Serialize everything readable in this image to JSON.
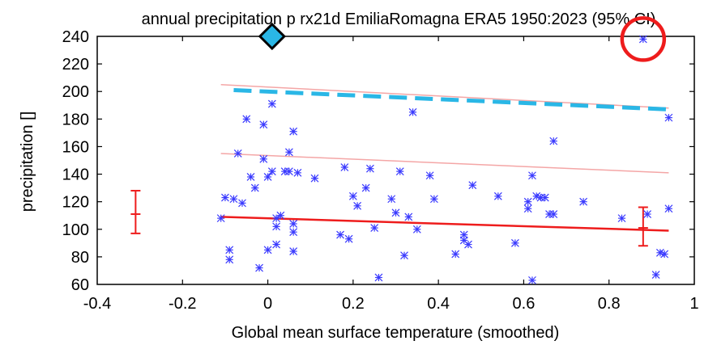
{
  "chart_data": {
    "type": "scatter",
    "title": "annual precipitation p rx21d EmiliaRomagna ERA5 1950:2023 (95% CI)",
    "xlabel": "Global mean surface temperature (smoothed)",
    "ylabel": "precipitation []",
    "xlim": [
      -0.4,
      1.0
    ],
    "ylim": [
      60,
      240
    ],
    "xticks": [
      "-0.4",
      "-0.2",
      "0",
      "0.2",
      "0.4",
      "0.6",
      "0.8",
      "1"
    ],
    "yticks": [
      "60",
      "80",
      "100",
      "120",
      "140",
      "160",
      "180",
      "200",
      "220",
      "240"
    ],
    "grid": false,
    "points": [
      {
        "x": -0.11,
        "y": 108
      },
      {
        "x": -0.1,
        "y": 123
      },
      {
        "x": -0.09,
        "y": 85
      },
      {
        "x": -0.09,
        "y": 78
      },
      {
        "x": -0.08,
        "y": 122
      },
      {
        "x": -0.07,
        "y": 155
      },
      {
        "x": -0.06,
        "y": 119
      },
      {
        "x": -0.05,
        "y": 180
      },
      {
        "x": -0.04,
        "y": 138
      },
      {
        "x": -0.03,
        "y": 130
      },
      {
        "x": -0.02,
        "y": 72
      },
      {
        "x": -0.01,
        "y": 176
      },
      {
        "x": -0.01,
        "y": 151
      },
      {
        "x": 0.0,
        "y": 85
      },
      {
        "x": 0.0,
        "y": 138
      },
      {
        "x": 0.01,
        "y": 191
      },
      {
        "x": 0.01,
        "y": 142
      },
      {
        "x": 0.02,
        "y": 102
      },
      {
        "x": 0.02,
        "y": 108
      },
      {
        "x": 0.02,
        "y": 89
      },
      {
        "x": 0.03,
        "y": 110
      },
      {
        "x": 0.04,
        "y": 142
      },
      {
        "x": 0.05,
        "y": 156
      },
      {
        "x": 0.05,
        "y": 142
      },
      {
        "x": 0.06,
        "y": 171
      },
      {
        "x": 0.06,
        "y": 84
      },
      {
        "x": 0.06,
        "y": 98
      },
      {
        "x": 0.06,
        "y": 104
      },
      {
        "x": 0.07,
        "y": 141
      },
      {
        "x": 0.11,
        "y": 137
      },
      {
        "x": 0.17,
        "y": 96
      },
      {
        "x": 0.18,
        "y": 145
      },
      {
        "x": 0.19,
        "y": 93
      },
      {
        "x": 0.2,
        "y": 124
      },
      {
        "x": 0.21,
        "y": 117
      },
      {
        "x": 0.23,
        "y": 130
      },
      {
        "x": 0.24,
        "y": 144
      },
      {
        "x": 0.25,
        "y": 101
      },
      {
        "x": 0.26,
        "y": 65
      },
      {
        "x": 0.29,
        "y": 122
      },
      {
        "x": 0.3,
        "y": 112
      },
      {
        "x": 0.31,
        "y": 142
      },
      {
        "x": 0.32,
        "y": 81
      },
      {
        "x": 0.33,
        "y": 109
      },
      {
        "x": 0.34,
        "y": 185
      },
      {
        "x": 0.35,
        "y": 100
      },
      {
        "x": 0.38,
        "y": 139
      },
      {
        "x": 0.39,
        "y": 122
      },
      {
        "x": 0.44,
        "y": 82
      },
      {
        "x": 0.46,
        "y": 96
      },
      {
        "x": 0.46,
        "y": 92
      },
      {
        "x": 0.47,
        "y": 89
      },
      {
        "x": 0.48,
        "y": 132
      },
      {
        "x": 0.54,
        "y": 124
      },
      {
        "x": 0.58,
        "y": 90
      },
      {
        "x": 0.61,
        "y": 115
      },
      {
        "x": 0.61,
        "y": 120
      },
      {
        "x": 0.62,
        "y": 139
      },
      {
        "x": 0.62,
        "y": 63
      },
      {
        "x": 0.63,
        "y": 124
      },
      {
        "x": 0.64,
        "y": 123
      },
      {
        "x": 0.65,
        "y": 123
      },
      {
        "x": 0.66,
        "y": 111
      },
      {
        "x": 0.67,
        "y": 111
      },
      {
        "x": 0.67,
        "y": 164
      },
      {
        "x": 0.74,
        "y": 120
      },
      {
        "x": 0.83,
        "y": 108
      },
      {
        "x": 0.88,
        "y": 238
      },
      {
        "x": 0.89,
        "y": 111
      },
      {
        "x": 0.91,
        "y": 67
      },
      {
        "x": 0.92,
        "y": 83
      },
      {
        "x": 0.93,
        "y": 82
      },
      {
        "x": 0.94,
        "y": 181
      },
      {
        "x": 0.94,
        "y": 115
      }
    ],
    "fit_lines": [
      {
        "x": [
          -0.11,
          0.94
        ],
        "y": [
          205,
          188
        ],
        "color": "#f4a6a6",
        "width": 1.5,
        "dash": false
      },
      {
        "x": [
          -0.11,
          0.94
        ],
        "y": [
          155,
          141
        ],
        "color": "#f4a6a6",
        "width": 1.5,
        "dash": false
      },
      {
        "x": [
          -0.11,
          0.94
        ],
        "y": [
          109,
          99
        ],
        "color": "#ee1c1c",
        "width": 2.5,
        "dash": false
      },
      {
        "x": [
          -0.08,
          0.94
        ],
        "y": [
          201,
          187
        ],
        "color": "#2ab7e6",
        "width": 5,
        "dash": true
      }
    ],
    "error_bars": [
      {
        "x": -0.31,
        "y": 111,
        "low": 97,
        "high": 128
      },
      {
        "x": 0.88,
        "y": 101,
        "low": 88,
        "high": 116
      }
    ],
    "marker": {
      "x": 0.01,
      "y": 240,
      "shape": "diamond",
      "color": "#2ab7e6"
    },
    "highlight": {
      "x": 0.88,
      "y": 238,
      "shape": "circle",
      "color": "#ee1c1c"
    },
    "colors": {
      "points": "#3a3aff",
      "fit": "#ee1c1c",
      "ci": "#f4a6a6",
      "dashed": "#2ab7e6",
      "axis": "#000000"
    }
  }
}
